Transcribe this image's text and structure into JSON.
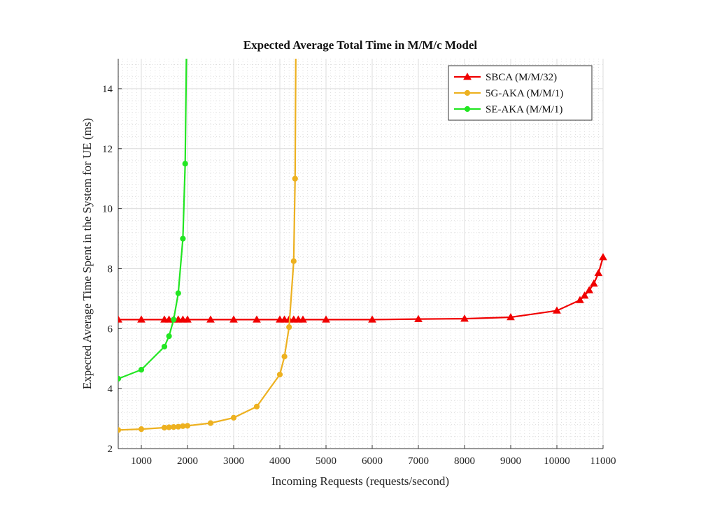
{
  "chart_data": {
    "type": "line",
    "title": "Expected Average Total Time in M/M/c Model",
    "xlabel": "Incoming Requests (requests/second)",
    "ylabel": "Expected Average Time Spent in the System for UE (ms)",
    "xlim": [
      500,
      11000
    ],
    "ylim": [
      2,
      15
    ],
    "xticks": [
      1000,
      2000,
      3000,
      4000,
      5000,
      6000,
      7000,
      8000,
      9000,
      10000,
      11000
    ],
    "yticks": [
      2,
      4,
      6,
      8,
      10,
      12,
      14
    ],
    "grid": true,
    "minor_grid": true,
    "legend_position": "top-right",
    "series": [
      {
        "name": "SBCA (M/M/32)",
        "color": "#f00000",
        "marker": "triangle",
        "x": [
          500,
          1000,
          1500,
          1600,
          1700,
          1800,
          1900,
          2000,
          2500,
          3000,
          3500,
          4000,
          4100,
          4200,
          4300,
          4400,
          4500,
          5000,
          6000,
          7000,
          8000,
          9000,
          10000,
          10500,
          10600,
          10700,
          10800,
          10900,
          11000
        ],
        "y": [
          6.3,
          6.3,
          6.3,
          6.3,
          6.3,
          6.3,
          6.3,
          6.3,
          6.3,
          6.3,
          6.3,
          6.3,
          6.3,
          6.3,
          6.3,
          6.3,
          6.3,
          6.3,
          6.3,
          6.32,
          6.33,
          6.38,
          6.6,
          6.95,
          7.1,
          7.28,
          7.5,
          7.85,
          8.38
        ]
      },
      {
        "name": "5G-AKA (M/M/1)",
        "color": "#edb120",
        "marker": "circle",
        "x": [
          500,
          1000,
          1500,
          1600,
          1700,
          1800,
          1900,
          2000,
          2500,
          3000,
          3500,
          4000,
          4100,
          4200,
          4300,
          4330,
          4345
        ],
        "y": [
          2.62,
          2.65,
          2.7,
          2.71,
          2.72,
          2.73,
          2.75,
          2.76,
          2.85,
          3.03,
          3.4,
          4.47,
          5.07,
          6.05,
          8.25,
          11.0,
          15.0
        ]
      },
      {
        "name": "SE-AKA (M/M/1)",
        "color": "#22e622",
        "marker": "circle",
        "x": [
          500,
          1000,
          1500,
          1600,
          1700,
          1800,
          1900,
          1950,
          1975
        ],
        "y": [
          4.33,
          4.63,
          5.4,
          5.75,
          6.3,
          7.18,
          9.0,
          11.5,
          15.0
        ]
      }
    ]
  }
}
